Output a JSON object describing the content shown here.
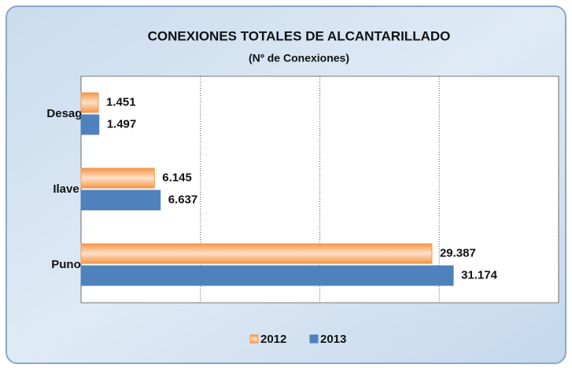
{
  "chart_data": {
    "type": "barh",
    "title": "CONEXIONES TOTALES  DE ALCANTARILLADO",
    "subtitle": "(Nº de Conexiones)",
    "categories": [
      "Desag.",
      "Ilave",
      "Puno"
    ],
    "series": [
      {
        "name": "2012",
        "color": "#f79646",
        "values": [
          1451,
          6145,
          29387
        ],
        "value_labels": [
          "1.451",
          "6.145",
          "29.387"
        ]
      },
      {
        "name": "2013",
        "color": "#4f81bd",
        "values": [
          1497,
          6637,
          31174
        ],
        "value_labels": [
          "1.497",
          "6.637",
          "31.174"
        ]
      }
    ],
    "xlim": [
      0,
      40000
    ],
    "xticks": [
      0,
      10000,
      20000,
      30000,
      40000
    ],
    "grid": true,
    "legend": "bottom"
  }
}
